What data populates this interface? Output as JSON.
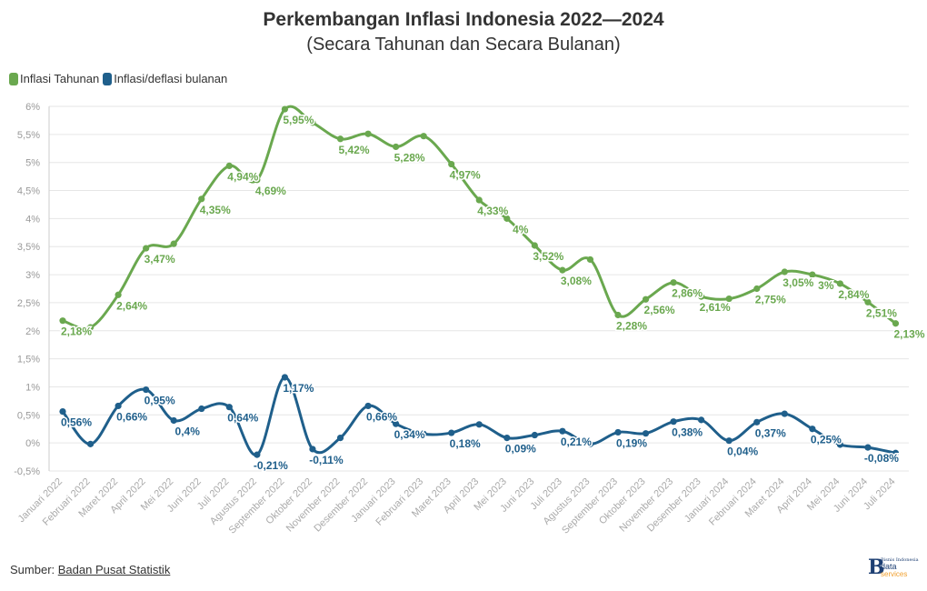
{
  "title": "Perkembangan Inflasi Indonesia 2022—2024",
  "subtitle": "(Secara Tahunan dan Secara Bulanan)",
  "legend": [
    {
      "label": "Inflasi Tahunan",
      "color": "#6aa84f"
    },
    {
      "label": "Inflasi/deflasi bulanan",
      "color": "#1f5f8b"
    }
  ],
  "source": {
    "prefix": "Sumber: ",
    "link": "Badan Pusat Statistik"
  },
  "logo": {
    "top": "Bisnis Indonesia",
    "line1": "data",
    "line2": "services"
  },
  "chart_data": {
    "type": "line",
    "categories": [
      "Januari 2022",
      "Februari 2022",
      "Maret 2022",
      "April 2022",
      "Mei 2022",
      "Juni 2022",
      "Juli 2022",
      "Agustus 2022",
      "September 2022",
      "Oktober 2022",
      "November 2022",
      "Desember 2022",
      "Januari 2023",
      "Februari 2023",
      "Maret 2023",
      "April 2023",
      "Mei 2023",
      "Juni 2023",
      "Juli 2023",
      "Agustus 2023",
      "September 2023",
      "Oktober 2023",
      "November 2023",
      "Desember 2023",
      "Januari 2024",
      "Februari 2024",
      "Maret 2024",
      "April 2024",
      "Mei 2024",
      "Juni 2024",
      "Juli 2024"
    ],
    "ylim": [
      -0.5,
      6
    ],
    "yticks": [
      -0.5,
      0,
      0.5,
      1,
      1.5,
      2,
      2.5,
      3,
      3.5,
      4,
      4.5,
      5,
      5.5,
      6
    ],
    "ytick_labels": [
      "-0,5%",
      "0%",
      "0,5%",
      "1%",
      "1,5%",
      "2%",
      "2,5%",
      "3%",
      "3,5%",
      "4%",
      "4,5%",
      "5%",
      "5,5%",
      "6%"
    ],
    "grid": true,
    "legend_position": "top-left",
    "series": [
      {
        "name": "Inflasi Tahunan",
        "color": "#6aa84f",
        "values": [
          2.18,
          2.06,
          2.64,
          3.47,
          3.55,
          4.35,
          4.94,
          4.69,
          5.95,
          5.71,
          5.42,
          5.51,
          5.28,
          5.47,
          4.97,
          4.33,
          4.0,
          3.52,
          3.08,
          3.27,
          2.28,
          2.56,
          2.86,
          2.61,
          2.57,
          2.75,
          3.05,
          3.0,
          2.84,
          2.51,
          2.13
        ],
        "labels": [
          "2,18%",
          null,
          "2,64%",
          "3,47%",
          null,
          "4,35%",
          "4,94%",
          "4,69%",
          "5,95%",
          null,
          "5,42%",
          null,
          "5,28%",
          null,
          "4,97%",
          "4,33%",
          "4%",
          "3,52%",
          "3,08%",
          null,
          "2,28%",
          "2,56%",
          "2,86%",
          "2,61%",
          null,
          "2,75%",
          "3,05%",
          "3%",
          "2,84%",
          "2,51%",
          "2,13%"
        ]
      },
      {
        "name": "Inflasi/deflasi bulanan",
        "color": "#1f5f8b",
        "values": [
          0.56,
          -0.02,
          0.66,
          0.95,
          0.4,
          0.61,
          0.64,
          -0.21,
          1.17,
          -0.11,
          0.09,
          0.66,
          0.34,
          0.16,
          0.18,
          0.33,
          0.09,
          0.14,
          0.21,
          -0.02,
          0.19,
          0.17,
          0.38,
          0.41,
          0.04,
          0.37,
          0.52,
          0.25,
          -0.03,
          -0.08,
          -0.18
        ],
        "labels": [
          "0,56%",
          null,
          "0,66%",
          "0,95%",
          "0,4%",
          null,
          "0,64%",
          "-0,21%",
          "1,17%",
          "-0,11%",
          null,
          "0,66%",
          "0,34%",
          null,
          "0,18%",
          null,
          "0,09%",
          null,
          "0,21%",
          null,
          "0,19%",
          null,
          "0,38%",
          null,
          "0,04%",
          "0,37%",
          null,
          "0,25%",
          null,
          "-0,08%",
          null
        ]
      }
    ]
  }
}
